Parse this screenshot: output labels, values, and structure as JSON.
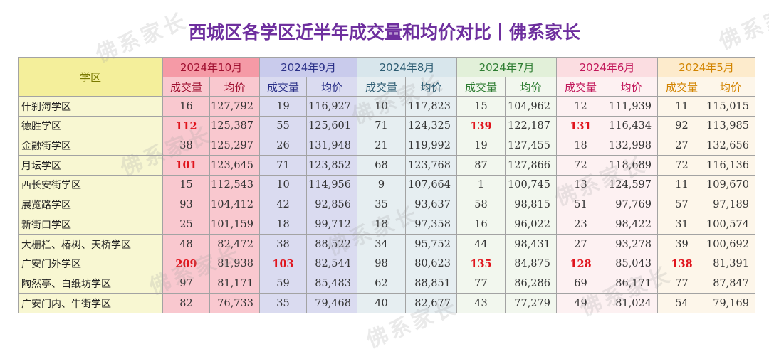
{
  "title": "西城区各学区近半年成交量和均价对比丨佛系家长",
  "watermark": "佛系家长",
  "header": {
    "district_label": "学区",
    "months": [
      "2024年10月",
      "2024年9月",
      "2024年8月",
      "2024年7月",
      "2024年6月",
      "2024年5月"
    ],
    "volume_label": "成交量",
    "price_label": "均价"
  },
  "rows": [
    {
      "name": "什刹海学区",
      "cells": [
        "16",
        "127,792",
        "19",
        "116,927",
        "10",
        "117,823",
        "15",
        "104,962",
        "12",
        "111,939",
        "11",
        "115,015"
      ]
    },
    {
      "name": "德胜学区",
      "cells": [
        "112",
        "125,387",
        "55",
        "125,601",
        "71",
        "124,325",
        "139",
        "122,187",
        "131",
        "116,434",
        "92",
        "113,985"
      ]
    },
    {
      "name": "金融街学区",
      "cells": [
        "38",
        "125,297",
        "26",
        "131,948",
        "21",
        "119,992",
        "19",
        "127,455",
        "18",
        "132,998",
        "27",
        "132,656"
      ]
    },
    {
      "name": "月坛学区",
      "cells": [
        "101",
        "123,645",
        "71",
        "123,852",
        "68",
        "123,768",
        "87",
        "127,866",
        "72",
        "118,689",
        "72",
        "116,136"
      ]
    },
    {
      "name": "西长安街学区",
      "cells": [
        "15",
        "112,543",
        "10",
        "114,956",
        "9",
        "107,664",
        "1",
        "100,745",
        "13",
        "124,597",
        "11",
        "109,670"
      ]
    },
    {
      "name": "展览路学区",
      "cells": [
        "93",
        "104,412",
        "42",
        "92,856",
        "35",
        "93,637",
        "58",
        "98,815",
        "51",
        "97,769",
        "57",
        "97,189"
      ]
    },
    {
      "name": "新街口学区",
      "cells": [
        "25",
        "101,159",
        "18",
        "99,712",
        "18",
        "97,358",
        "16",
        "96,022",
        "23",
        "98,422",
        "31",
        "100,574"
      ]
    },
    {
      "name": "大栅栏、椿树、天桥学区",
      "cells": [
        "48",
        "82,472",
        "38",
        "88,522",
        "34",
        "95,752",
        "44",
        "98,431",
        "27",
        "93,278",
        "39",
        "100,692"
      ]
    },
    {
      "name": "广安门外学区",
      "cells": [
        "209",
        "81,938",
        "103",
        "82,544",
        "98",
        "80,623",
        "135",
        "84,875",
        "128",
        "85,043",
        "138",
        "81,391"
      ]
    },
    {
      "name": "陶然亭、白纸坊学区",
      "cells": [
        "97",
        "81,171",
        "59",
        "85,483",
        "62",
        "88,851",
        "77",
        "86,286",
        "69",
        "86,171",
        "77",
        "87,847"
      ]
    },
    {
      "name": "广安门内、牛街学区",
      "cells": [
        "82",
        "76,733",
        "35",
        "79,468",
        "40",
        "82,677",
        "43",
        "77,279",
        "49",
        "81,024",
        "54",
        "79,169"
      ]
    }
  ],
  "highlights": {
    "color": "#e0141c",
    "cells": [
      [
        1,
        0
      ],
      [
        3,
        0
      ],
      [
        8,
        0
      ],
      [
        8,
        2
      ],
      [
        1,
        6
      ],
      [
        8,
        6
      ],
      [
        1,
        8
      ],
      [
        8,
        8
      ],
      [
        8,
        10
      ]
    ]
  }
}
